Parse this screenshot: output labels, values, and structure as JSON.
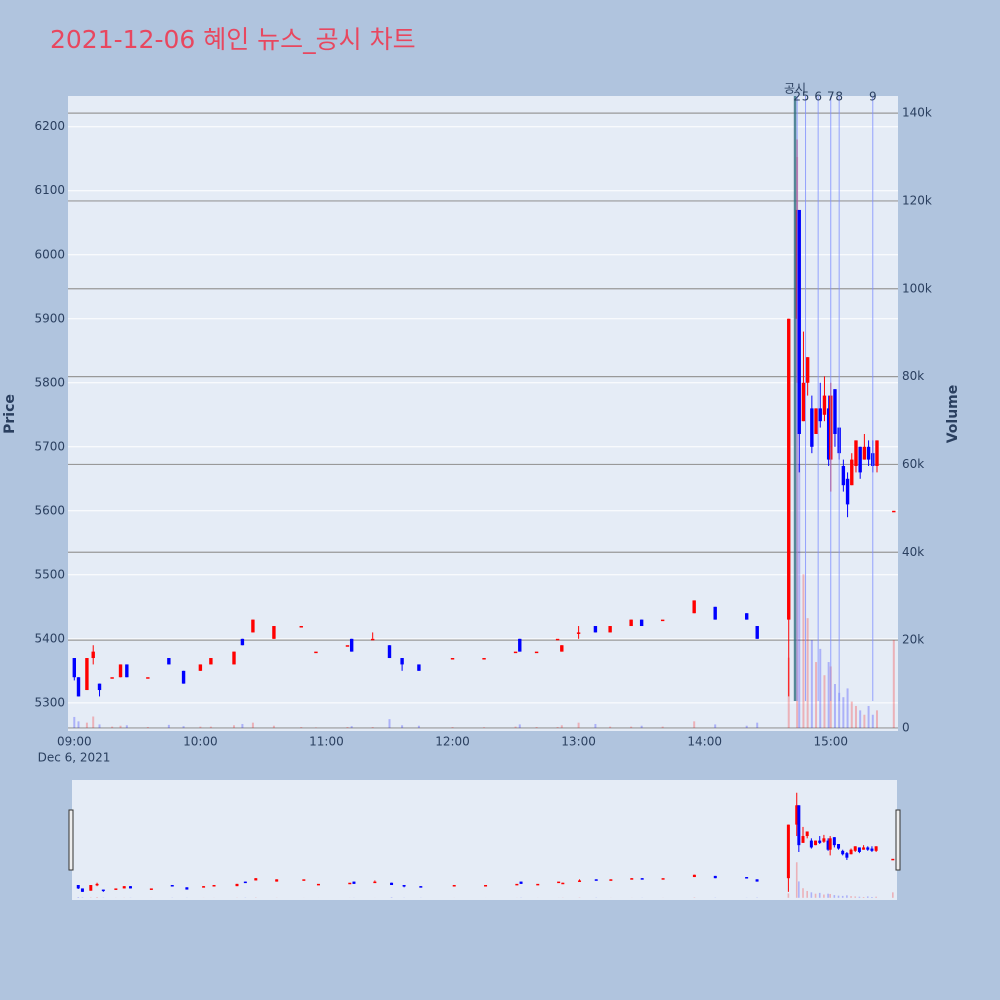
{
  "chart_data": {
    "type": "candlestick",
    "title": "2021-12-06 혜인 뉴스_공시 차트",
    "ylabel": "Price",
    "y2label": "Volume",
    "x_date_label": "Dec 6, 2021",
    "xlim": [
      "08:57",
      "15:32"
    ],
    "xticks": [
      "09:00",
      "10:00",
      "11:00",
      "12:00",
      "13:00",
      "14:00",
      "15:00"
    ],
    "ylim": [
      5256,
      6248
    ],
    "yticks": [
      5300,
      5400,
      5500,
      5600,
      5700,
      5800,
      5900,
      6000,
      6100,
      6200
    ],
    "y2lim": [
      -700,
      143900
    ],
    "y2ticks": [
      0,
      {
        "value": 20000,
        "label": "20k"
      },
      {
        "value": 40000,
        "label": "40k"
      },
      {
        "value": 60000,
        "label": "60k"
      },
      {
        "value": 80000,
        "label": "80k"
      },
      {
        "value": 100000,
        "label": "100k"
      },
      {
        "value": 120000,
        "label": "120k"
      },
      {
        "value": 140000,
        "label": "140k"
      }
    ],
    "increasing_color": "#ff0000",
    "decreasing_color": "#0000ff",
    "x": [
      "09:00",
      "09:02",
      "09:06",
      "09:09",
      "09:12",
      "09:18",
      "09:22",
      "09:25",
      "09:35",
      "09:45",
      "09:52",
      "10:00",
      "10:05",
      "10:16",
      "10:20",
      "10:25",
      "10:35",
      "10:48",
      "10:55",
      "11:10",
      "11:12",
      "11:22",
      "11:30",
      "11:36",
      "11:44",
      "12:00",
      "12:15",
      "12:30",
      "12:32",
      "12:40",
      "12:50",
      "12:52",
      "13:00",
      "13:08",
      "13:15",
      "13:25",
      "13:30",
      "13:40",
      "13:55",
      "14:05",
      "14:20",
      "14:25",
      "14:40",
      "14:44",
      "14:45",
      "14:47",
      "14:49",
      "14:51",
      "14:53",
      "14:55",
      "14:57",
      "14:59",
      "15:00",
      "15:02",
      "15:04",
      "15:06",
      "15:08",
      "15:10",
      "15:12",
      "15:14",
      "15:16",
      "15:18",
      "15:20",
      "15:22",
      "15:30"
    ],
    "open": [
      5370,
      5340,
      5320,
      5370,
      5330,
      5340,
      5340,
      5360,
      5340,
      5370,
      5350,
      5350,
      5360,
      5360,
      5400,
      5410,
      5400,
      5420,
      5380,
      5390,
      5400,
      5400,
      5390,
      5370,
      5360,
      5370,
      5370,
      5380,
      5400,
      5380,
      5400,
      5380,
      5410,
      5420,
      5410,
      5420,
      5430,
      5430,
      5440,
      5450,
      5440,
      5420,
      5430,
      5900,
      6070,
      5740,
      5800,
      5760,
      5720,
      5760,
      5750,
      5760,
      5680,
      5790,
      5730,
      5670,
      5650,
      5640,
      5670,
      5700,
      5680,
      5700,
      5690,
      5670,
      5600
    ],
    "high": [
      5370,
      5340,
      5370,
      5390,
      5330,
      5340,
      5360,
      5360,
      5340,
      5370,
      5350,
      5360,
      5370,
      5380,
      5400,
      5430,
      5420,
      5420,
      5380,
      5390,
      5400,
      5410,
      5390,
      5370,
      5360,
      5370,
      5370,
      5380,
      5400,
      5380,
      5400,
      5390,
      5420,
      5420,
      5420,
      5430,
      5430,
      5430,
      5460,
      5450,
      5440,
      5420,
      5900,
      6180,
      6070,
      5880,
      5840,
      5780,
      5760,
      5800,
      5810,
      5780,
      5800,
      5790,
      5730,
      5680,
      5660,
      5690,
      5710,
      5700,
      5720,
      5710,
      5710,
      5710,
      5600
    ],
    "low": [
      5335,
      5310,
      5320,
      5360,
      5310,
      5340,
      5340,
      5340,
      5340,
      5360,
      5330,
      5350,
      5360,
      5360,
      5390,
      5410,
      5400,
      5420,
      5380,
      5390,
      5380,
      5400,
      5370,
      5350,
      5350,
      5370,
      5370,
      5380,
      5380,
      5380,
      5400,
      5380,
      5400,
      5410,
      5410,
      5420,
      5420,
      5430,
      5440,
      5430,
      5430,
      5400,
      5310,
      5800,
      5660,
      5740,
      5780,
      5690,
      5720,
      5730,
      5740,
      5670,
      5630,
      5700,
      5680,
      5630,
      5590,
      5640,
      5660,
      5650,
      5680,
      5670,
      5660,
      5660,
      5600
    ],
    "close": [
      5340,
      5310,
      5370,
      5380,
      5320,
      5340,
      5360,
      5340,
      5340,
      5360,
      5330,
      5360,
      5370,
      5380,
      5390,
      5430,
      5420,
      5420,
      5380,
      5390,
      5380,
      5400,
      5370,
      5360,
      5350,
      5370,
      5370,
      5380,
      5380,
      5380,
      5400,
      5390,
      5410,
      5410,
      5420,
      5430,
      5420,
      5430,
      5460,
      5430,
      5430,
      5400,
      5900,
      6070,
      5720,
      5800,
      5840,
      5700,
      5760,
      5740,
      5780,
      5680,
      5780,
      5720,
      5690,
      5640,
      5610,
      5680,
      5710,
      5660,
      5700,
      5680,
      5670,
      5710,
      5600
    ],
    "volume": [
      2500,
      1500,
      1200,
      2600,
      800,
      300,
      500,
      600,
      200,
      700,
      400,
      300,
      300,
      600,
      900,
      1200,
      500,
      200,
      100,
      200,
      400,
      200,
      2000,
      600,
      500,
      200,
      150,
      300,
      800,
      200,
      200,
      600,
      1200,
      900,
      300,
      300,
      500,
      300,
      1500,
      800,
      500,
      1200,
      16000,
      130000,
      60000,
      35000,
      25000,
      20000,
      15000,
      18000,
      12000,
      15000,
      14000,
      10000,
      8000,
      7000,
      9000,
      6000,
      5000,
      4000,
      3000,
      5000,
      3000,
      4000,
      20000
    ],
    "annotations": [
      {
        "x": "14:43",
        "label": "공시",
        "color": "#2f6f80"
      },
      {
        "x": "14:44",
        "label": "2",
        "color": "#7f8fff"
      },
      {
        "x": "14:48",
        "label": "5",
        "color": "#7f8fff"
      },
      {
        "x": "14:54",
        "label": "6",
        "color": "#7f8fff"
      },
      {
        "x": "15:00",
        "label": "7",
        "color": "#7f8fff"
      },
      {
        "x": "15:04",
        "label": "8",
        "color": "#7f8fff"
      },
      {
        "x": "15:20",
        "label": "9",
        "color": "#7f8fff"
      }
    ]
  }
}
